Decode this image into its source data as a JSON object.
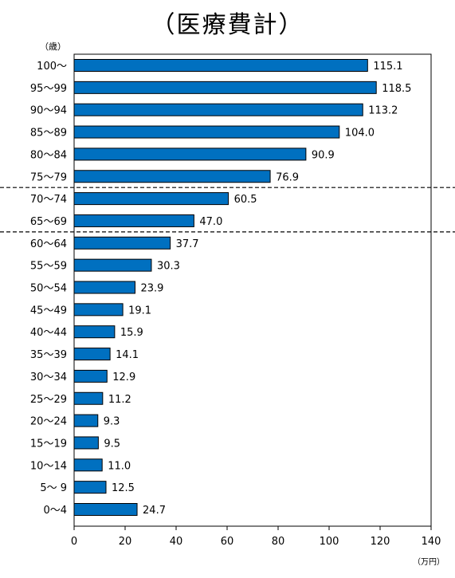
{
  "chart_data": {
    "type": "bar",
    "orientation": "horizontal",
    "title": "（医療費計）",
    "ylabel": "（歳）",
    "xlabel": "（万円）",
    "xlim": [
      0,
      140
    ],
    "x_ticks": [
      0,
      20,
      40,
      60,
      80,
      100,
      120,
      140
    ],
    "grid": false,
    "bar_color": "#0070C0",
    "categories": [
      "100～",
      "95～99",
      "90～94",
      "85～89",
      "80～84",
      "75～79",
      "70～74",
      "65～69",
      "60～64",
      "55～59",
      "50～54",
      "45～49",
      "40～44",
      "35～39",
      "30～34",
      "25～29",
      "20～24",
      "15～19",
      "10～14",
      "5～ 9",
      "0～4"
    ],
    "values": [
      115.1,
      118.5,
      113.2,
      104.0,
      90.9,
      76.9,
      60.5,
      47.0,
      37.7,
      30.3,
      23.9,
      19.1,
      15.9,
      14.1,
      12.9,
      11.2,
      9.3,
      9.5,
      11.0,
      12.5,
      24.7
    ],
    "value_labels": [
      "115.1",
      "118.5",
      "113.2",
      "104.0",
      "90.9",
      "76.9",
      "60.5",
      "47.0",
      "37.7",
      "30.3",
      "23.9",
      "19.1",
      "15.9",
      "14.1",
      "12.9",
      "11.2",
      "9.3",
      "9.5",
      "11.0",
      "12.5",
      "24.7"
    ],
    "dashed_separators_after": [
      "75～79",
      "65～69"
    ]
  }
}
